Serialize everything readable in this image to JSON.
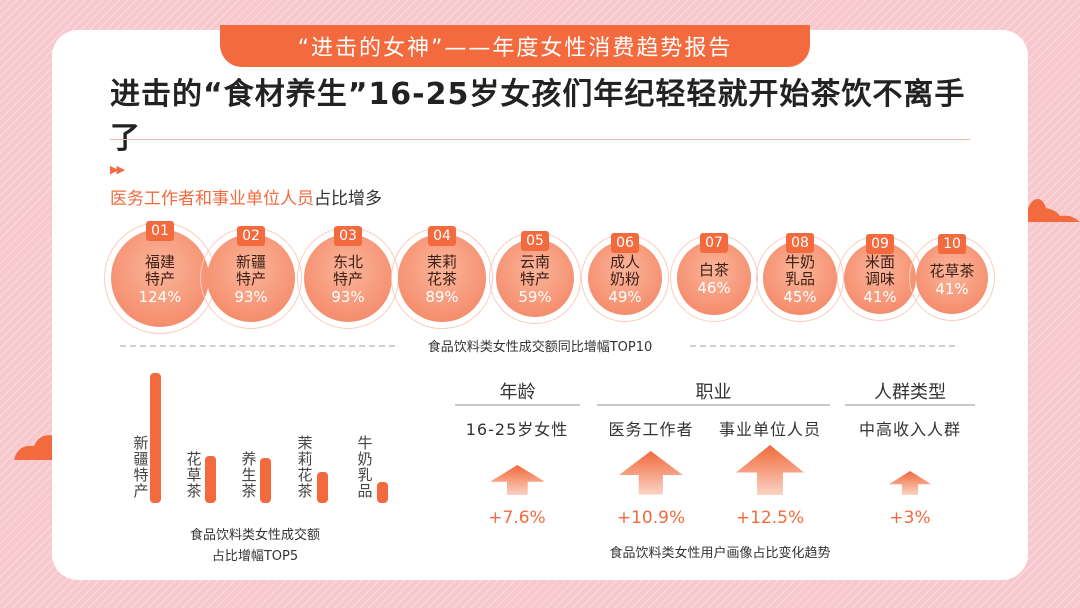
{
  "banner": "“进击的女神”——年度女性消费趋势报告",
  "headline": "进击的“食材养生”16-25岁女孩们年纪轻轻就开始茶饮不离手了",
  "arrows": "▶▶",
  "subtitle": {
    "highlight": "医务工作者和事业单位人员",
    "rest": "占比增多"
  },
  "colors": {
    "accent": "#f26a3d",
    "bubble": "#f48b6a",
    "background": "#f7c9cf"
  },
  "chart_data": [
    {
      "type": "bubble",
      "title": "食品饮料类女性成交额同比增幅TOP10",
      "items": [
        {
          "rank": "01",
          "line1": "福建",
          "line2": "特产",
          "value": 124,
          "label": "124%"
        },
        {
          "rank": "02",
          "line1": "新疆",
          "line2": "特产",
          "value": 93,
          "label": "93%"
        },
        {
          "rank": "03",
          "line1": "东北",
          "line2": "特产",
          "value": 93,
          "label": "93%"
        },
        {
          "rank": "04",
          "line1": "茉莉",
          "line2": "花茶",
          "value": 89,
          "label": "89%"
        },
        {
          "rank": "05",
          "line1": "云南",
          "line2": "特产",
          "value": 59,
          "label": "59%"
        },
        {
          "rank": "06",
          "line1": "成人",
          "line2": "奶粉",
          "value": 49,
          "label": "49%"
        },
        {
          "rank": "07",
          "line1": "白茶",
          "line2": "",
          "value": 46,
          "label": "46%"
        },
        {
          "rank": "08",
          "line1": "牛奶",
          "line2": "乳品",
          "value": 45,
          "label": "45%"
        },
        {
          "rank": "09",
          "line1": "米面",
          "line2": "调味",
          "value": 41,
          "label": "41%"
        },
        {
          "rank": "10",
          "line1": "花草茶",
          "line2": "",
          "value": 41,
          "label": "41%"
        }
      ]
    },
    {
      "type": "bar",
      "title_line1": "食品饮料类女性成交额",
      "title_line2": "占比增幅TOP5",
      "categories": [
        "新疆特产",
        "花草茶",
        "养生茶",
        "茉莉花茶",
        "牛奶乳品"
      ],
      "values": [
        100,
        36,
        35,
        24,
        16
      ]
    },
    {
      "type": "bar",
      "title": "食品饮料类女性用户画像占比变化趋势",
      "groups": [
        {
          "name": "年龄",
          "items": [
            {
              "label": "16-25岁女性",
              "value": 7.6,
              "text": "+7.6%"
            }
          ]
        },
        {
          "name": "职业",
          "items": [
            {
              "label": "医务工作者",
              "value": 10.9,
              "text": "+10.9%"
            },
            {
              "label": "事业单位人员",
              "value": 12.5,
              "text": "+12.5%"
            }
          ]
        },
        {
          "name": "人群类型",
          "items": [
            {
              "label": "中高收入人群",
              "value": 3,
              "text": "+3%"
            }
          ]
        }
      ]
    }
  ]
}
